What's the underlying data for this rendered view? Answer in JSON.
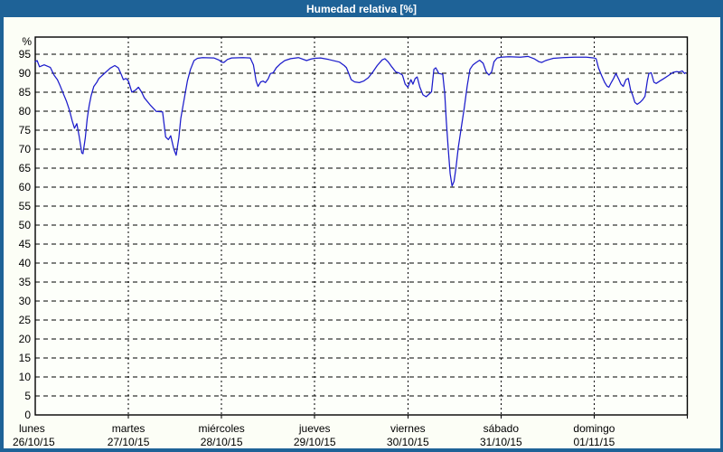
{
  "window": {
    "title": "Humedad relativa [%]"
  },
  "colors": {
    "frame": "#1e6297",
    "background": "#fcfef6",
    "plot_background": "#fdfffa",
    "line": "#1b1bcb",
    "grid": "#000000",
    "axis": "#000000",
    "text": "#000000",
    "title_text": "#ffffff"
  },
  "chart_data": {
    "type": "line",
    "title": "Humedad relativa [%]",
    "unit_label": "%",
    "ylabel": "",
    "xlabel": "",
    "ylim": [
      0,
      99.5
    ],
    "ytick_step": 5,
    "ytick_labels": [
      "0",
      "5",
      "10",
      "15",
      "20",
      "25",
      "30",
      "35",
      "40",
      "45",
      "50",
      "55",
      "60",
      "65",
      "70",
      "75",
      "80",
      "85",
      "90",
      "95"
    ],
    "grid": "dashed",
    "legend_position": "none",
    "x_axis": {
      "x_unit": "hours from lunes 26/10/15 00:00",
      "range_hours": [
        0,
        168
      ],
      "days": [
        {
          "name": "lunes",
          "date": "26/10/15"
        },
        {
          "name": "martes",
          "date": "27/10/15"
        },
        {
          "name": "miércoles",
          "date": "28/10/15"
        },
        {
          "name": "jueves",
          "date": "29/10/15"
        },
        {
          "name": "viernes",
          "date": "30/10/15"
        },
        {
          "name": "sábado",
          "date": "31/10/15"
        },
        {
          "name": "domingo",
          "date": "01/11/15"
        }
      ]
    },
    "series": [
      {
        "name": "Humedad relativa",
        "color": "#1b1bcb",
        "points": [
          [
            0,
            93.0
          ],
          [
            0.5,
            93.3
          ],
          [
            1.1,
            91.7
          ],
          [
            1.6,
            91.9
          ],
          [
            2.3,
            92.2
          ],
          [
            3.2,
            91.8
          ],
          [
            3.9,
            91.5
          ],
          [
            4.3,
            90.6
          ],
          [
            4.9,
            89.4
          ],
          [
            5.7,
            88.3
          ],
          [
            6.4,
            86.7
          ],
          [
            7.2,
            84.7
          ],
          [
            8.0,
            82.7
          ],
          [
            8.8,
            80.3
          ],
          [
            9.5,
            77.5
          ],
          [
            10.1,
            75.5
          ],
          [
            10.7,
            76.7
          ],
          [
            11.3,
            73.5
          ],
          [
            12.0,
            69.0
          ],
          [
            12.3,
            68.8
          ],
          [
            12.9,
            73.0
          ],
          [
            13.4,
            78.0
          ],
          [
            13.9,
            81.5
          ],
          [
            14.4,
            84.0
          ],
          [
            15.1,
            86.5
          ],
          [
            15.8,
            87.5
          ],
          [
            16.4,
            88.6
          ],
          [
            17.9,
            90.0
          ],
          [
            19.3,
            91.3
          ],
          [
            20.5,
            92.0
          ],
          [
            21.4,
            91.4
          ],
          [
            22.1,
            89.8
          ],
          [
            22.7,
            88.3
          ],
          [
            23.4,
            88.6
          ],
          [
            24.0,
            87.9
          ],
          [
            24.9,
            85.0
          ],
          [
            25.8,
            85.5
          ],
          [
            26.6,
            86.3
          ],
          [
            27.4,
            85.0
          ],
          [
            28.1,
            83.5
          ],
          [
            29.7,
            81.5
          ],
          [
            31.2,
            79.9
          ],
          [
            32.8,
            79.8
          ],
          [
            33.6,
            73.2
          ],
          [
            34.3,
            72.5
          ],
          [
            34.9,
            73.5
          ],
          [
            35.7,
            70.0
          ],
          [
            36.3,
            68.4
          ],
          [
            37.0,
            73.0
          ],
          [
            37.5,
            78.0
          ],
          [
            38.0,
            81.0
          ],
          [
            38.6,
            84.5
          ],
          [
            39.2,
            88.0
          ],
          [
            40.0,
            91.0
          ],
          [
            40.9,
            93.3
          ],
          [
            41.8,
            93.9
          ],
          [
            43.1,
            94.1
          ],
          [
            46.0,
            94.0
          ],
          [
            47.4,
            93.4
          ],
          [
            48.0,
            92.9
          ],
          [
            48.6,
            92.8
          ],
          [
            49.5,
            93.6
          ],
          [
            50.6,
            94.0
          ],
          [
            53.5,
            94.1
          ],
          [
            55.4,
            94.0
          ],
          [
            56.2,
            92.2
          ],
          [
            56.9,
            87.9
          ],
          [
            57.4,
            86.5
          ],
          [
            58.1,
            87.7
          ],
          [
            58.7,
            87.9
          ],
          [
            59.3,
            87.5
          ],
          [
            60.0,
            88.5
          ],
          [
            60.6,
            89.9
          ],
          [
            61.3,
            90.1
          ],
          [
            62.1,
            91.4
          ],
          [
            63.1,
            92.4
          ],
          [
            64.3,
            93.3
          ],
          [
            65.8,
            93.8
          ],
          [
            67.8,
            94.1
          ],
          [
            69.9,
            93.3
          ],
          [
            71.0,
            93.7
          ],
          [
            72.0,
            93.9
          ],
          [
            73.5,
            94.0
          ],
          [
            75.6,
            93.6
          ],
          [
            78.4,
            92.9
          ],
          [
            79.6,
            92.0
          ],
          [
            80.2,
            91.4
          ],
          [
            81.4,
            88.3
          ],
          [
            82.3,
            87.7
          ],
          [
            83.5,
            87.5
          ],
          [
            84.6,
            87.9
          ],
          [
            85.8,
            88.8
          ],
          [
            86.9,
            90.2
          ],
          [
            88.1,
            92.0
          ],
          [
            89.4,
            93.5
          ],
          [
            90.1,
            93.8
          ],
          [
            90.9,
            93.0
          ],
          [
            91.9,
            91.6
          ],
          [
            92.9,
            90.3
          ],
          [
            93.8,
            90.0
          ],
          [
            94.6,
            89.5
          ],
          [
            95.3,
            87.1
          ],
          [
            96.0,
            86.3
          ],
          [
            96.8,
            88.3
          ],
          [
            97.3,
            87.1
          ],
          [
            97.9,
            88.6
          ],
          [
            98.4,
            89.0
          ],
          [
            99.1,
            86.3
          ],
          [
            99.9,
            84.3
          ],
          [
            100.7,
            83.8
          ],
          [
            101.5,
            84.5
          ],
          [
            102.1,
            85.1
          ],
          [
            102.7,
            91.0
          ],
          [
            103.2,
            91.4
          ],
          [
            104.0,
            89.9
          ],
          [
            105.0,
            89.7
          ],
          [
            105.5,
            84.7
          ],
          [
            105.9,
            77.5
          ],
          [
            106.4,
            70.0
          ],
          [
            106.9,
            63.5
          ],
          [
            107.4,
            60.3
          ],
          [
            107.9,
            61.5
          ],
          [
            108.4,
            65.0
          ],
          [
            109.0,
            70.4
          ],
          [
            109.7,
            75.2
          ],
          [
            110.5,
            80.7
          ],
          [
            111.3,
            86.7
          ],
          [
            112.0,
            91.0
          ],
          [
            112.8,
            92.2
          ],
          [
            113.6,
            92.8
          ],
          [
            114.5,
            93.4
          ],
          [
            115.4,
            92.6
          ],
          [
            116.2,
            90.3
          ],
          [
            116.9,
            89.5
          ],
          [
            117.6,
            90.3
          ],
          [
            118.2,
            93.0
          ],
          [
            119.0,
            94.0
          ],
          [
            120.0,
            94.2
          ],
          [
            122.0,
            94.3
          ],
          [
            125.0,
            94.2
          ],
          [
            127.0,
            94.4
          ],
          [
            128.5,
            93.8
          ],
          [
            129.8,
            93.0
          ],
          [
            130.5,
            92.8
          ],
          [
            131.5,
            93.3
          ],
          [
            132.4,
            93.6
          ],
          [
            133.5,
            93.9
          ],
          [
            136.0,
            94.1
          ],
          [
            139.0,
            94.2
          ],
          [
            142.0,
            94.2
          ],
          [
            144.0,
            94.0
          ],
          [
            144.5,
            93.8
          ],
          [
            145.1,
            91.4
          ],
          [
            145.9,
            89.4
          ],
          [
            146.7,
            87.6
          ],
          [
            147.3,
            86.6
          ],
          [
            147.8,
            86.3
          ],
          [
            148.4,
            87.5
          ],
          [
            149.0,
            88.6
          ],
          [
            149.6,
            89.9
          ],
          [
            150.4,
            88.3
          ],
          [
            150.9,
            87.1
          ],
          [
            151.5,
            86.5
          ],
          [
            152.2,
            88.3
          ],
          [
            152.8,
            88.6
          ],
          [
            153.4,
            85.5
          ],
          [
            153.9,
            84.3
          ],
          [
            154.5,
            82.3
          ],
          [
            155.1,
            81.8
          ],
          [
            155.8,
            82.3
          ],
          [
            156.5,
            83.0
          ],
          [
            157.1,
            83.9
          ],
          [
            157.7,
            88.0
          ],
          [
            158.1,
            89.9
          ],
          [
            158.7,
            90.1
          ],
          [
            159.4,
            87.6
          ],
          [
            160.0,
            87.3
          ],
          [
            160.9,
            87.9
          ],
          [
            162.0,
            88.6
          ],
          [
            163.2,
            89.4
          ],
          [
            164.3,
            90.2
          ],
          [
            165.2,
            90.4
          ],
          [
            166.0,
            90.3
          ],
          [
            166.7,
            90.6
          ],
          [
            167.3,
            89.9
          ],
          [
            167.6,
            90.1
          ]
        ]
      }
    ]
  }
}
